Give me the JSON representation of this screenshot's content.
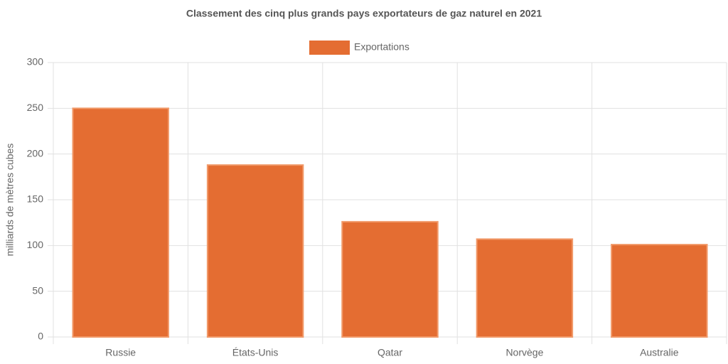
{
  "chart_data": {
    "type": "bar",
    "title": "Classement des cinq plus grands pays exportateurs de gaz naturel en 2021",
    "y_label": "milliards de mètres cubes",
    "categories": [
      "Russie",
      "États-Unis",
      "Qatar",
      "Norvège",
      "Australie"
    ],
    "series": [
      {
        "name": "Exportations",
        "color": "#e46d32",
        "values": [
          250,
          188,
          126,
          107,
          101
        ]
      }
    ],
    "ylim": [
      0,
      300
    ],
    "yticks": [
      0,
      50,
      100,
      150,
      200,
      250,
      300
    ],
    "grid": true,
    "legend": "top"
  }
}
